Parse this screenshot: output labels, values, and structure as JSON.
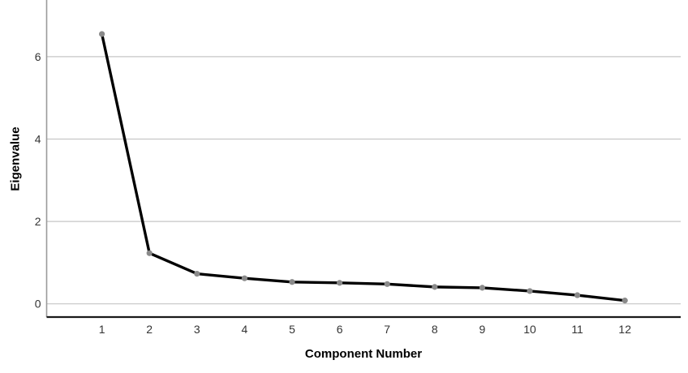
{
  "chart_data": {
    "type": "line",
    "title": "",
    "xlabel": "Component Number",
    "ylabel": "Eigenvalue",
    "x": [
      1,
      2,
      3,
      4,
      5,
      6,
      7,
      8,
      9,
      10,
      11,
      12
    ],
    "series": [
      {
        "name": "Eigenvalue",
        "values": [
          6.55,
          1.23,
          0.73,
          0.62,
          0.53,
          0.51,
          0.48,
          0.41,
          0.39,
          0.31,
          0.21,
          0.08
        ]
      }
    ],
    "yticks": [
      0,
      2,
      4,
      6
    ],
    "ylim": [
      -0.32,
      7.7
    ],
    "xlim": [
      0,
      13
    ],
    "grid": "horizontal-only",
    "legend": "none",
    "line_color": "#000000",
    "marker_color": "#8a8a8a",
    "grid_color": "#c6c6c6",
    "y_axis_color": "#9a9a9a",
    "x_axis_color": "#1a1a1a",
    "tick_label_color": "#333333",
    "background_color": "#ffffff"
  }
}
